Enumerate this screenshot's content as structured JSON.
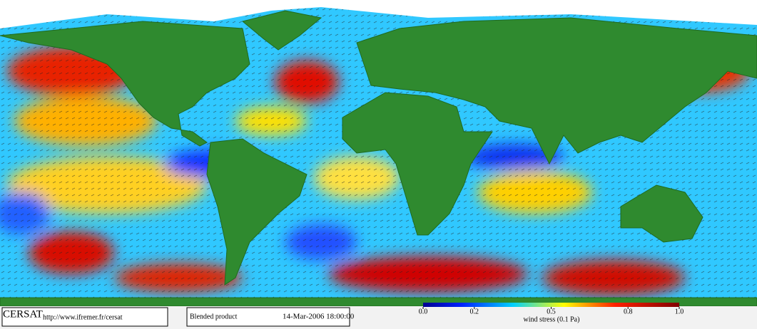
{
  "logo": "CERSAT",
  "url": "http://www.ifremer.fr/cersat",
  "product": "Blended product",
  "date": "14-Mar-2006 18:00:00",
  "colorbar": {
    "label": "wind stress (0.1 Pa)",
    "range": [
      0,
      1
    ],
    "ticks": [
      {
        "value": 0,
        "label": "0.0"
      },
      0.2,
      0.5,
      0.8,
      {
        "value": 1,
        "label": "1.0"
      }
    ]
  }
}
